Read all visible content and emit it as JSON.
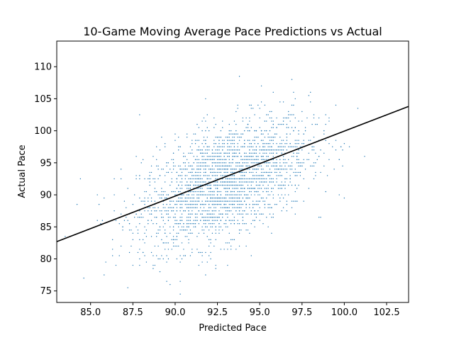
{
  "chart_data": {
    "type": "scatter",
    "title": "10-Game Moving Average Pace Predictions vs Actual",
    "xlabel": "Predicted Pace",
    "ylabel": "Actual Pace",
    "xlim": [
      83.0,
      103.8
    ],
    "ylim": [
      73.2,
      114.0
    ],
    "xticks": [
      85.0,
      87.5,
      90.0,
      92.5,
      95.0,
      97.5,
      100.0,
      102.5
    ],
    "xtick_labels": [
      "85.0",
      "87.5",
      "90.0",
      "92.5",
      "95.0",
      "97.5",
      "100.0",
      "102.5"
    ],
    "yticks": [
      75,
      80,
      85,
      90,
      95,
      100,
      105,
      110
    ],
    "ytick_labels": [
      "75",
      "80",
      "85",
      "90",
      "95",
      "100",
      "105",
      "110"
    ],
    "grid": false,
    "scatter_color": "#1f77b4",
    "scatter_summary": {
      "n_points": 2600,
      "x_mean": 92.9,
      "x_sd": 2.5,
      "y_mean": 92.0,
      "y_sd": 5.0,
      "correlation": 0.5
    },
    "series": [
      {
        "type": "line",
        "color": "#000000",
        "x": [
          83.0,
          103.8
        ],
        "y": [
          82.7,
          103.8
        ]
      }
    ]
  }
}
